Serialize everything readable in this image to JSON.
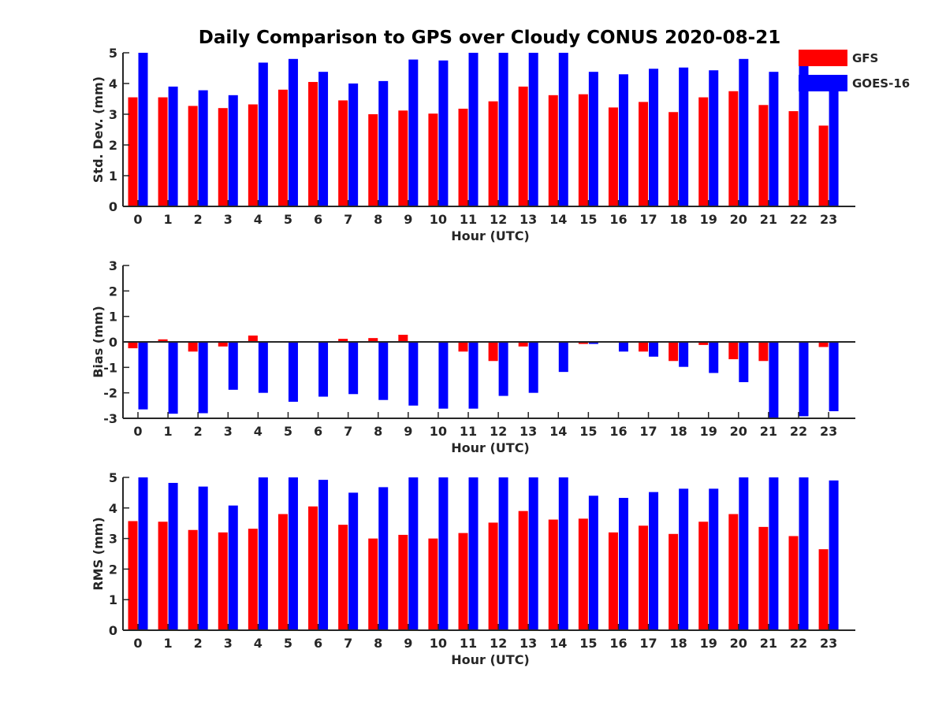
{
  "figure": {
    "title": "Daily Comparison to GPS over Cloudy CONUS 2020-08-21"
  },
  "legend": {
    "placement": "top-right, outside plot area",
    "entries": [
      {
        "label": "GFS",
        "color": "#ff0000"
      },
      {
        "label": "GOES-16",
        "color": "#0000ff"
      }
    ]
  },
  "chart_data": [
    {
      "type": "bar",
      "xlabel": "Hour (UTC)",
      "ylabel": "Std. Dev. (mm)",
      "ylim": [
        0,
        5
      ],
      "yticks": [
        0,
        1,
        2,
        3,
        4,
        5
      ],
      "categories": [
        "0",
        "1",
        "2",
        "3",
        "4",
        "5",
        "6",
        "7",
        "8",
        "9",
        "10",
        "11",
        "12",
        "13",
        "14",
        "15",
        "16",
        "17",
        "18",
        "19",
        "20",
        "21",
        "22",
        "23"
      ],
      "series": [
        {
          "name": "GFS",
          "color": "#ff0000",
          "values": [
            3.55,
            3.55,
            3.27,
            3.2,
            3.32,
            3.8,
            4.05,
            3.45,
            3.0,
            3.12,
            3.02,
            3.18,
            3.42,
            3.9,
            3.62,
            3.65,
            3.22,
            3.4,
            3.07,
            3.55,
            3.75,
            3.3,
            3.1,
            2.63
          ]
        },
        {
          "name": "GOES-16",
          "color": "#0000ff",
          "values": [
            5.0,
            3.9,
            3.78,
            3.62,
            4.68,
            4.8,
            4.38,
            4.0,
            4.08,
            4.78,
            4.75,
            5.0,
            5.0,
            5.0,
            5.0,
            4.38,
            4.3,
            4.48,
            4.52,
            4.43,
            4.8,
            4.38,
            4.75,
            3.9
          ]
        }
      ]
    },
    {
      "type": "bar",
      "xlabel": "Hour (UTC)",
      "ylabel": "Bias (mm)",
      "ylim": [
        -3,
        3
      ],
      "yticks": [
        -3,
        -2,
        -1,
        0,
        1,
        2,
        3
      ],
      "zero_line": true,
      "categories": [
        "0",
        "1",
        "2",
        "3",
        "4",
        "5",
        "6",
        "7",
        "8",
        "9",
        "10",
        "11",
        "12",
        "13",
        "14",
        "15",
        "16",
        "17",
        "18",
        "19",
        "20",
        "21",
        "22",
        "23"
      ],
      "series": [
        {
          "name": "GFS",
          "color": "#ff0000",
          "values": [
            -0.25,
            0.1,
            -0.38,
            -0.18,
            0.25,
            0.0,
            0.0,
            0.12,
            0.15,
            0.28,
            0.0,
            -0.38,
            -0.75,
            -0.18,
            0.0,
            -0.08,
            -0.03,
            -0.38,
            -0.75,
            -0.12,
            -0.68,
            -0.75,
            -0.03,
            -0.2
          ]
        },
        {
          "name": "GOES-16",
          "color": "#0000ff",
          "values": [
            -2.65,
            -2.82,
            -2.8,
            -1.88,
            -2.0,
            -2.35,
            -2.15,
            -2.05,
            -2.28,
            -2.5,
            -2.62,
            -2.62,
            -2.12,
            -2.0,
            -1.18,
            -0.08,
            -0.38,
            -0.58,
            -0.98,
            -1.22,
            -1.58,
            -3.0,
            -2.92,
            -2.72
          ]
        }
      ]
    },
    {
      "type": "bar",
      "xlabel": "Hour (UTC)",
      "ylabel": "RMS (mm)",
      "ylim": [
        0,
        5
      ],
      "yticks": [
        0,
        1,
        2,
        3,
        4,
        5
      ],
      "categories": [
        "0",
        "1",
        "2",
        "3",
        "4",
        "5",
        "6",
        "7",
        "8",
        "9",
        "10",
        "11",
        "12",
        "13",
        "14",
        "15",
        "16",
        "17",
        "18",
        "19",
        "20",
        "21",
        "22",
        "23"
      ],
      "series": [
        {
          "name": "GFS",
          "color": "#ff0000",
          "values": [
            3.57,
            3.55,
            3.28,
            3.2,
            3.32,
            3.8,
            4.05,
            3.45,
            3.0,
            3.12,
            3.0,
            3.18,
            3.52,
            3.9,
            3.62,
            3.65,
            3.2,
            3.42,
            3.15,
            3.55,
            3.8,
            3.38,
            3.08,
            2.65
          ]
        },
        {
          "name": "GOES-16",
          "color": "#0000ff",
          "values": [
            5.0,
            4.82,
            4.7,
            4.08,
            5.0,
            5.0,
            4.92,
            4.5,
            4.68,
            5.0,
            5.0,
            5.0,
            5.0,
            5.0,
            5.0,
            4.4,
            4.33,
            4.52,
            4.63,
            4.63,
            5.0,
            5.0,
            5.0,
            4.9
          ]
        }
      ]
    }
  ]
}
